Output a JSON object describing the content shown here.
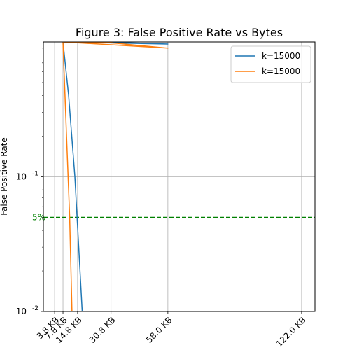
{
  "chart_data": {
    "type": "line",
    "title": "Figure 3: False Positive Rate vs Bytes",
    "xlabel": "",
    "ylabel": "False Positive Rate",
    "yscale": "log",
    "xlim": [
      -1.59,
      128.4
    ],
    "ylim": [
      0.01,
      1.0
    ],
    "grid": true,
    "legend_position": "top-right",
    "x_ticks": [
      {
        "value": 3.8,
        "label": "3.8 KB"
      },
      {
        "value": 7.8,
        "label": "7.8 KB"
      },
      {
        "value": 14.8,
        "label": "14.8 KB"
      },
      {
        "value": 30.8,
        "label": "30.8 KB"
      },
      {
        "value": 58.0,
        "label": "58.0 KB"
      },
      {
        "value": 122.0,
        "label": "122.0 KB"
      }
    ],
    "y_ticks": [
      {
        "value": 0.1,
        "label": "10^-1"
      },
      {
        "value": 0.01,
        "label": "10^-2"
      }
    ],
    "series": [
      {
        "name": "k=15000",
        "color": "#1f77b4",
        "points": [
          [
            7.8,
            1.0
          ],
          [
            30.8,
            0.995
          ],
          [
            58.0,
            0.965
          ],
          [
            7.8,
            1.0
          ],
          [
            10.5,
            0.4
          ],
          [
            13.5,
            0.1
          ],
          [
            17.0,
            0.01
          ]
        ]
      },
      {
        "name": "k=15000",
        "color": "#ff7f0e",
        "points": [
          [
            7.8,
            1.0
          ],
          [
            30.8,
            0.985
          ],
          [
            58.0,
            0.9
          ],
          [
            7.8,
            1.0
          ],
          [
            9.5,
            0.2
          ],
          [
            11.0,
            0.05
          ],
          [
            12.1,
            0.01
          ]
        ]
      }
    ],
    "reference_line": {
      "y": 0.05,
      "label": "5%",
      "color": "#008000",
      "style": "dashed"
    }
  }
}
